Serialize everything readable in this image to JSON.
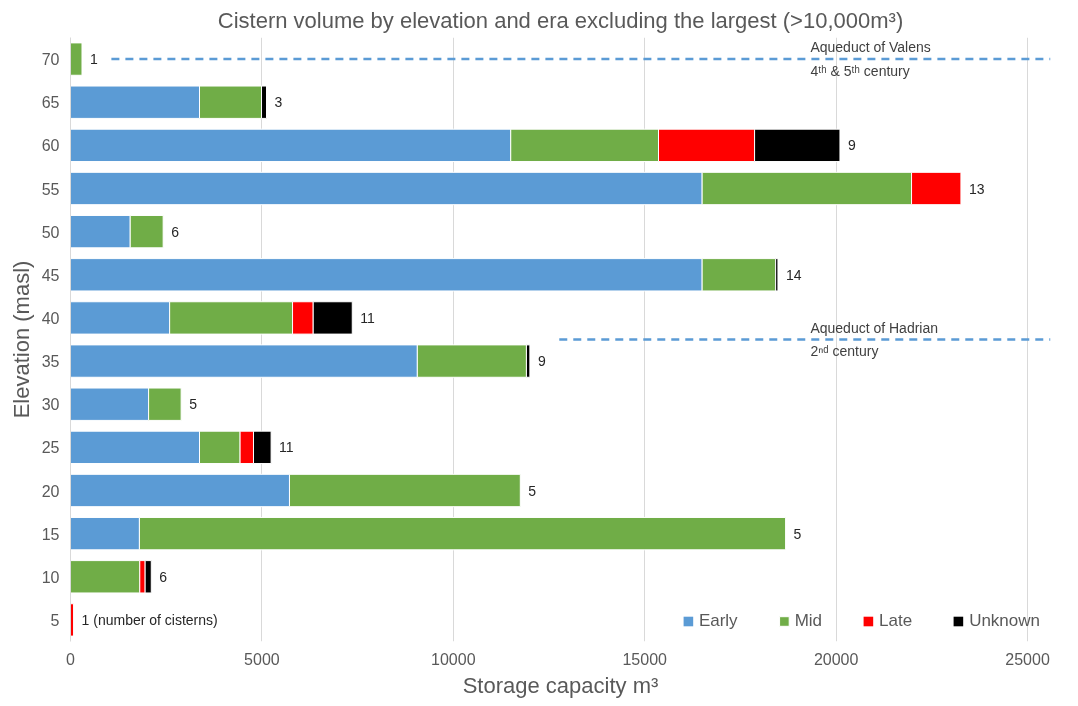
{
  "chart_data": {
    "type": "bar",
    "orientation": "horizontal",
    "stacked": true,
    "title": "Cistern volume by elevation and era excluding the largest (>10,000m³)",
    "xlabel": "Storage capacity m³",
    "ylabel": "Elevation (masl)",
    "x": [
      70,
      65,
      60,
      55,
      50,
      45,
      40,
      35,
      30,
      25,
      20,
      15,
      10,
      5
    ],
    "series": [
      {
        "name": "Early",
        "color": "#5b9bd5",
        "values": [
          0,
          3370,
          11500,
          16500,
          1560,
          16500,
          2590,
          9060,
          2040,
          3370,
          5720,
          1800,
          0,
          0
        ]
      },
      {
        "name": "Mid",
        "color": "#70ad47",
        "values": [
          300,
          1620,
          3860,
          5470,
          860,
          1920,
          3210,
          2850,
          850,
          1060,
          6030,
          16880,
          1810,
          0
        ]
      },
      {
        "name": "Late",
        "color": "#ff0000",
        "values": [
          0,
          0,
          2510,
          1290,
          0,
          0,
          540,
          0,
          0,
          350,
          0,
          0,
          140,
          80
        ]
      },
      {
        "name": "Unknown",
        "color": "#000000",
        "values": [
          0,
          130,
          2230,
          0,
          0,
          60,
          1020,
          90,
          0,
          460,
          0,
          0,
          160,
          0
        ]
      }
    ],
    "xlim": [
      0,
      25600
    ],
    "xticks": [
      0,
      5000,
      10000,
      15000,
      20000,
      25000
    ],
    "ylim": [
      2.5,
      72.5
    ],
    "yticks": [
      5,
      10,
      15,
      20,
      25,
      30,
      35,
      40,
      45,
      50,
      55,
      60,
      65,
      70
    ],
    "grid": "x",
    "legend": "bottom right",
    "ref_lines": [
      {
        "axis": "y",
        "value": 70,
        "label": "Aqueduct of Valens\n4ᵗʰ & 5ᵗʰ century",
        "color": "#5b9bd5",
        "line_style": "dashed"
      },
      {
        "axis": "y",
        "value": 37.5,
        "label": "Aqueduct of Hadrian\n2ⁿᵈ century",
        "color": "#5b9bd5",
        "line_style": "dashed"
      }
    ],
    "annotations": [
      {
        "text": "1",
        "x": 300,
        "y": 70
      },
      {
        "text": "3",
        "x": 5120,
        "y": 65
      },
      {
        "text": "9",
        "x": 20100,
        "y": 60
      },
      {
        "text": "13",
        "x": 23260,
        "y": 55
      },
      {
        "text": "6",
        "x": 2420,
        "y": 50
      },
      {
        "text": "14",
        "x": 18480,
        "y": 45
      },
      {
        "text": "11",
        "x": 7360,
        "y": 40
      },
      {
        "text": "9",
        "x": 12000,
        "y": 35
      },
      {
        "text": "5",
        "x": 2890,
        "y": 30
      },
      {
        "text": "11",
        "x": 5240,
        "y": 25
      },
      {
        "text": "5",
        "x": 11750,
        "y": 20
      },
      {
        "text": "5",
        "x": 18680,
        "y": 15
      },
      {
        "text": "6",
        "x": 2110,
        "y": 10
      },
      {
        "text": "1 (number of cisterns)",
        "x": 80,
        "y": 5
      }
    ]
  }
}
